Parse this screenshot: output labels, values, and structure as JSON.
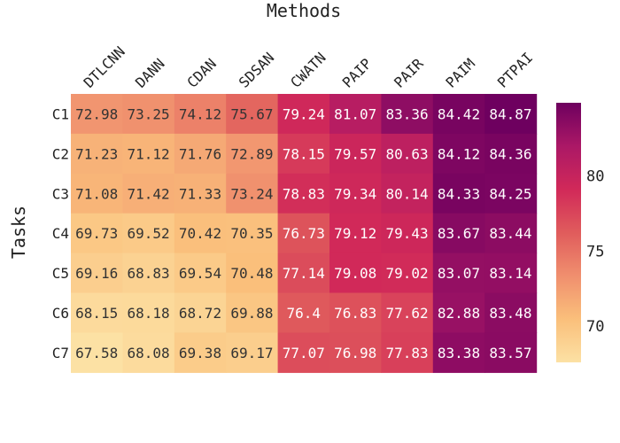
{
  "chart_data": {
    "type": "heatmap",
    "title": "",
    "xlabel": "Methods",
    "ylabel": "Tasks",
    "x_categories": [
      "DTLCNN",
      "DANN",
      "CDAN",
      "SDSAN",
      "CWATN",
      "PAIP",
      "PAIR",
      "PAIM",
      "PTPAI"
    ],
    "y_categories": [
      "C1",
      "C2",
      "C3",
      "C4",
      "C5",
      "C6",
      "C7"
    ],
    "values": [
      [
        72.98,
        73.25,
        74.12,
        75.67,
        79.24,
        81.07,
        83.36,
        84.42,
        84.87
      ],
      [
        71.23,
        71.12,
        71.76,
        72.89,
        78.15,
        79.57,
        80.63,
        84.12,
        84.36
      ],
      [
        71.08,
        71.42,
        71.33,
        73.24,
        78.83,
        79.34,
        80.14,
        84.33,
        84.25
      ],
      [
        69.73,
        69.52,
        70.42,
        70.35,
        76.73,
        79.12,
        79.43,
        83.67,
        83.44
      ],
      [
        69.16,
        68.83,
        69.54,
        70.48,
        77.14,
        79.08,
        79.02,
        83.07,
        83.14
      ],
      [
        68.15,
        68.18,
        68.72,
        69.88,
        76.4,
        76.83,
        77.62,
        82.88,
        83.48
      ],
      [
        67.58,
        68.08,
        69.38,
        69.17,
        77.07,
        76.98,
        77.83,
        83.38,
        83.57
      ]
    ],
    "colorbar": {
      "min": 67.58,
      "max": 84.87,
      "ticks": [
        70,
        75,
        80
      ],
      "colormap": [
        "#fce1a4",
        "#fabf7b",
        "#f08f6e",
        "#e05c5c",
        "#d12959",
        "#ab1866",
        "#6e005f"
      ]
    },
    "cell_text_color_dark": "#333333",
    "cell_text_color_light": "#ffffff"
  }
}
